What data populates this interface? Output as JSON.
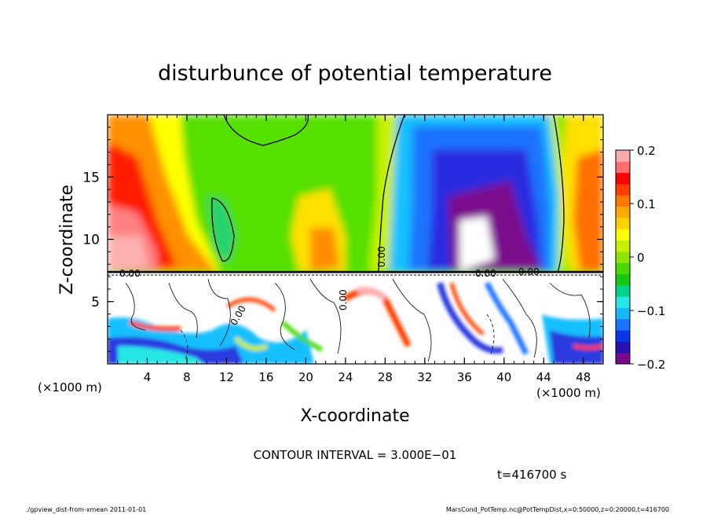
{
  "chart_data": {
    "type": "heatmap",
    "title": "disturbunce of potential temperature",
    "xlabel": "X-coordinate",
    "ylabel": "Z-coordinate",
    "x_unit_left": "(×1000 m)",
    "x_unit_right": "(×1000 m)",
    "xlim": [
      0,
      50
    ],
    "ylim": [
      0,
      20
    ],
    "x_ticks": [
      "4",
      "8",
      "12",
      "16",
      "20",
      "24",
      "28",
      "32",
      "36",
      "40",
      "44",
      "48"
    ],
    "x_tick_values": [
      4,
      8,
      12,
      16,
      20,
      24,
      28,
      32,
      36,
      40,
      44,
      48
    ],
    "y_ticks": [
      "5",
      "10",
      "15"
    ],
    "y_tick_values": [
      5,
      10,
      15
    ],
    "colorbar": {
      "range": [
        -0.2,
        0.2
      ],
      "ticks": [
        "0.2",
        "0.1",
        "0",
        "−0.1",
        "−0.2"
      ],
      "tick_values": [
        0.2,
        0.1,
        0,
        -0.1,
        -0.2
      ],
      "colors": [
        "#7a0a8c",
        "#2810b4",
        "#0a37e6",
        "#1a73ff",
        "#16b8ff",
        "#28e6e6",
        "#00d28c",
        "#14c814",
        "#46dc00",
        "#8ce600",
        "#c8f000",
        "#ffff00",
        "#ffd200",
        "#ffaa00",
        "#ff7800",
        "#ff3c00",
        "#ff0000",
        "#ff6e6e",
        "#ffaaaa"
      ]
    },
    "contour_labels": [
      "0.00",
      "0.00",
      "0.00",
      "0.00",
      "0.00",
      "0.00"
    ],
    "annotations": {
      "contour_interval": "CONTOUR INTERVAL = 3.000E−01",
      "time": "t=416700 s"
    },
    "field_samples": [
      {
        "x": 3,
        "z": 12,
        "value": 0.18
      },
      {
        "x": 6,
        "z": 17,
        "value": 0.08
      },
      {
        "x": 12,
        "z": 14,
        "value": 0.02
      },
      {
        "x": 17,
        "z": 16,
        "value": -0.005
      },
      {
        "x": 22,
        "z": 9,
        "value": 0.08
      },
      {
        "x": 27,
        "z": 15,
        "value": 0.0
      },
      {
        "x": 33,
        "z": 14,
        "value": -0.1
      },
      {
        "x": 37,
        "z": 12,
        "value": -0.2
      },
      {
        "x": 40,
        "z": 14,
        "value": -0.16
      },
      {
        "x": 43,
        "z": 15,
        "value": -0.06
      },
      {
        "x": 48,
        "z": 11,
        "value": 0.1
      }
    ]
  },
  "footer": {
    "left": "./gpview_dist-from-xmean  2011-01-01",
    "right": "MarsCond_PotTemp.nc@PotTempDist,x=0:50000,z=0:20000,t=416700"
  }
}
